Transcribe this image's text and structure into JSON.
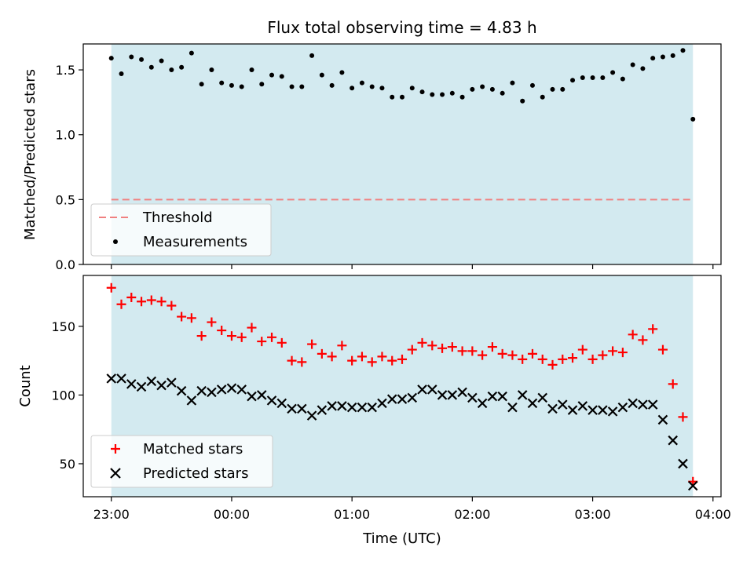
{
  "chart_data": {
    "type": "scatter",
    "title": "Flux total observing time = 4.83 h",
    "xlabel": "Time (UTC)",
    "x_tick_labels": [
      "23:00",
      "00:00",
      "01:00",
      "02:00",
      "03:00",
      "04:00"
    ],
    "x_tick_minutes": [
      0,
      60,
      120,
      180,
      240,
      300
    ],
    "xlim_minutes": [
      -14,
      304
    ],
    "observing_span_minutes": [
      0,
      290
    ],
    "colors": {
      "span": "#d3eaf0",
      "threshold": "#f08080",
      "measurement": "#000000",
      "matched": "#ff0000",
      "predicted": "#000000"
    },
    "panels": [
      {
        "ylabel": "Matched/Predicted stars",
        "ylim": [
          0,
          1.7
        ],
        "y_ticks": [
          0.0,
          0.5,
          1.0,
          1.5
        ],
        "y_tick_labels": [
          "0.0",
          "0.5",
          "1.0",
          "1.5"
        ],
        "legend": {
          "placement": "lower-left",
          "entries": [
            "Threshold",
            "Measurements"
          ]
        },
        "threshold": {
          "name": "Threshold",
          "value": 0.5,
          "x_range_minutes": [
            0,
            290
          ]
        },
        "measurements": {
          "name": "Measurements",
          "x_minutes": [
            0,
            5,
            10,
            15,
            20,
            25,
            30,
            35,
            40,
            45,
            50,
            55,
            60,
            65,
            70,
            75,
            80,
            85,
            90,
            95,
            100,
            105,
            110,
            115,
            120,
            125,
            130,
            135,
            140,
            145,
            150,
            155,
            160,
            165,
            170,
            175,
            180,
            185,
            190,
            195,
            200,
            205,
            210,
            215,
            220,
            225,
            230,
            235,
            240,
            245,
            250,
            255,
            260,
            265,
            270,
            275,
            280,
            285,
            290
          ],
          "y": [
            1.59,
            1.47,
            1.6,
            1.58,
            1.52,
            1.57,
            1.5,
            1.52,
            1.63,
            1.39,
            1.5,
            1.4,
            1.38,
            1.37,
            1.5,
            1.39,
            1.46,
            1.45,
            1.37,
            1.37,
            1.61,
            1.46,
            1.38,
            1.48,
            1.36,
            1.4,
            1.37,
            1.36,
            1.29,
            1.29,
            1.36,
            1.33,
            1.31,
            1.31,
            1.32,
            1.29,
            1.35,
            1.37,
            1.35,
            1.32,
            1.4,
            1.26,
            1.38,
            1.29,
            1.35,
            1.35,
            1.42,
            1.44,
            1.44,
            1.44,
            1.48,
            1.43,
            1.54,
            1.51,
            1.59,
            1.6,
            1.61,
            1.65,
            1.12
          ]
        }
      },
      {
        "ylabel": "Count",
        "ylim": [
          26,
          187
        ],
        "y_ticks": [
          50,
          100,
          150
        ],
        "y_tick_labels": [
          "50",
          "100",
          "150"
        ],
        "legend": {
          "placement": "lower-left",
          "entries": [
            "Matched stars",
            "Predicted stars"
          ]
        },
        "series": [
          {
            "name": "Matched stars",
            "marker": "+",
            "x_minutes": [
              0,
              5,
              10,
              15,
              20,
              25,
              30,
              35,
              40,
              45,
              50,
              55,
              60,
              65,
              70,
              75,
              80,
              85,
              90,
              95,
              100,
              105,
              110,
              115,
              120,
              125,
              130,
              135,
              140,
              145,
              150,
              155,
              160,
              165,
              170,
              175,
              180,
              185,
              190,
              195,
              200,
              205,
              210,
              215,
              220,
              225,
              230,
              235,
              240,
              245,
              250,
              255,
              260,
              265,
              270,
              275,
              280,
              285,
              290
            ],
            "y": [
              178,
              166,
              171,
              168,
              169,
              168,
              165,
              157,
              156,
              143,
              153,
              147,
              143,
              142,
              149,
              139,
              142,
              138,
              125,
              124,
              137,
              130,
              128,
              136,
              125,
              128,
              124,
              128,
              125,
              126,
              133,
              138,
              136,
              134,
              135,
              132,
              132,
              129,
              135,
              130,
              129,
              126,
              130,
              126,
              122,
              126,
              127,
              133,
              126,
              129,
              132,
              131,
              144,
              140,
              148,
              133,
              108,
              84,
              37
            ]
          },
          {
            "name": "Predicted stars",
            "marker": "x",
            "x_minutes": [
              0,
              5,
              10,
              15,
              20,
              25,
              30,
              35,
              40,
              45,
              50,
              55,
              60,
              65,
              70,
              75,
              80,
              85,
              90,
              95,
              100,
              105,
              110,
              115,
              120,
              125,
              130,
              135,
              140,
              145,
              150,
              155,
              160,
              165,
              170,
              175,
              180,
              185,
              190,
              195,
              200,
              205,
              210,
              215,
              220,
              225,
              230,
              235,
              240,
              245,
              250,
              255,
              260,
              265,
              270,
              275,
              280,
              285,
              290
            ],
            "y": [
              112,
              112,
              108,
              106,
              110,
              107,
              109,
              103,
              96,
              103,
              102,
              104,
              105,
              104,
              99,
              100,
              96,
              94,
              90,
              90,
              85,
              89,
              92,
              92,
              91,
              91,
              91,
              94,
              97,
              97,
              98,
              104,
              104,
              100,
              100,
              102,
              98,
              94,
              99,
              99,
              91,
              100,
              94,
              98,
              90,
              93,
              89,
              92,
              89,
              89,
              88,
              91,
              94,
              93,
              93,
              82,
              67,
              50,
              34
            ]
          }
        ]
      }
    ]
  }
}
